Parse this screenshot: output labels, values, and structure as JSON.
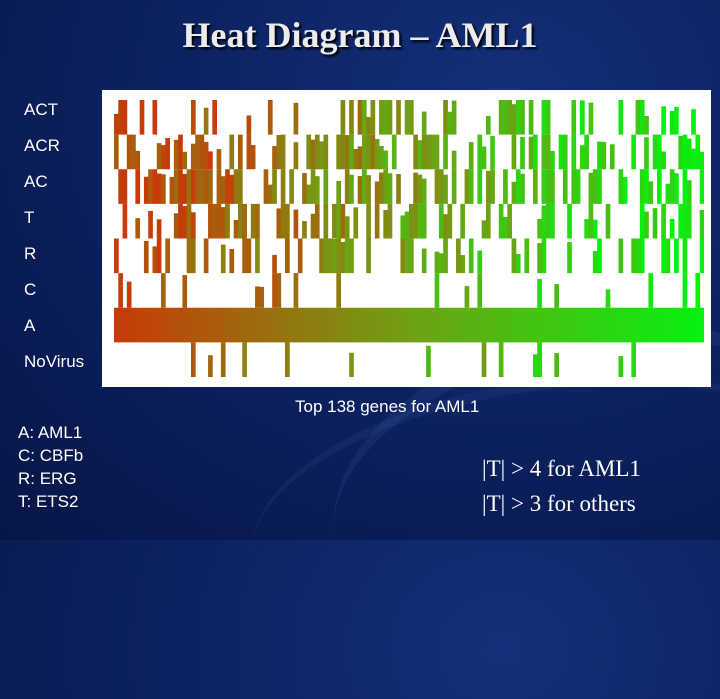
{
  "page": {
    "title": "Heat Diagram – AML1"
  },
  "chart_data": {
    "type": "heatmap",
    "title": "Heat Diagram – AML1",
    "xlabel": "Top 138 genes for AML1",
    "ylabel": "",
    "n_genes": 138,
    "rows": [
      "ACT",
      "ACR",
      "AC",
      "T",
      "R",
      "C",
      "A",
      "NoVirus"
    ],
    "color_scale": {
      "low": "#c83a08",
      "mid": "#6fa014",
      "high": "#08f010",
      "background": "#ffffff"
    },
    "grid": false
  },
  "legend": {
    "items": [
      "A: AML1",
      "C: CBFb",
      "R: ERG",
      "T: ETS2"
    ]
  },
  "notes": [
    "|T|  > 4 for AML1",
    "|T|  > 3 for others"
  ],
  "colors": {
    "background": "#0c2262",
    "text": "#ffffff",
    "title": "#ececec"
  }
}
